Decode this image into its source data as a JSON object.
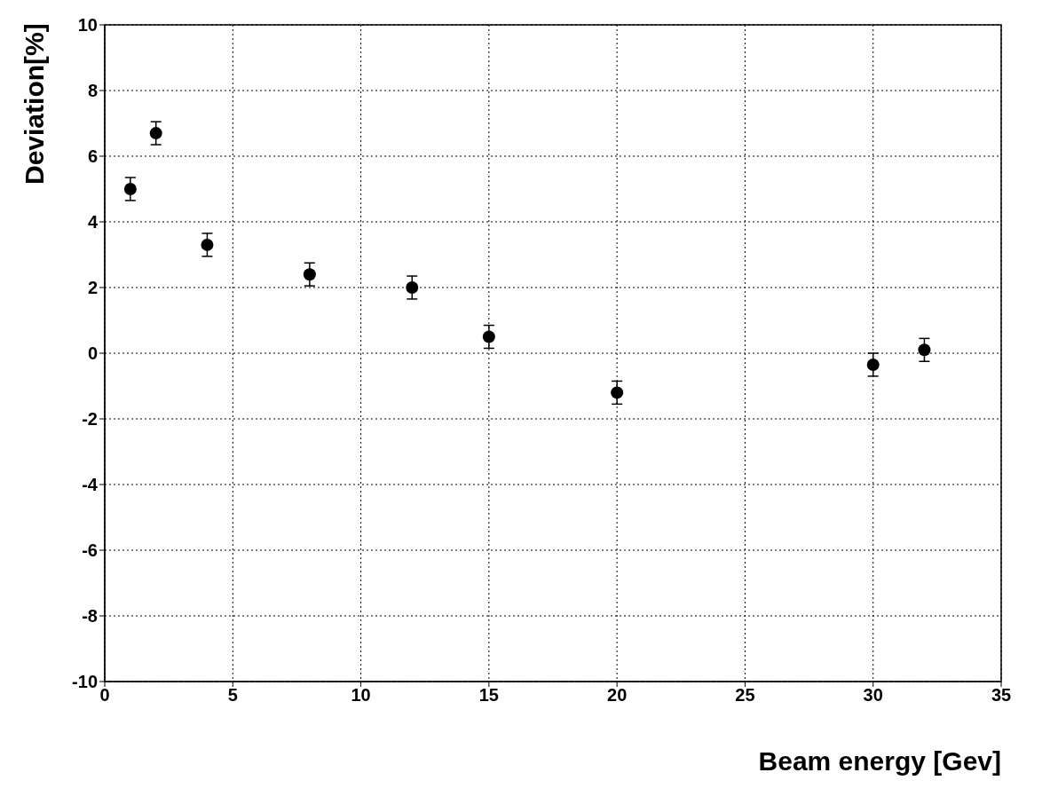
{
  "chart_data": {
    "type": "scatter",
    "xlabel": "Beam energy [Gev]",
    "ylabel": "Deviation[%]",
    "x": [
      1,
      2,
      4,
      8,
      12,
      15,
      20,
      30,
      32
    ],
    "series": [
      {
        "color": "#000000",
        "values": [
          5.0,
          6.7,
          3.3,
          2.4,
          2.0,
          0.5,
          -1.2,
          -0.35,
          0.1
        ],
        "errors": [
          0.35,
          0.35,
          0.35,
          0.35,
          0.35,
          0.35,
          0.35,
          0.35,
          0.35
        ]
      }
    ],
    "xlim": [
      0,
      35
    ],
    "xticks": [
      0,
      5,
      10,
      15,
      20,
      25,
      30,
      35
    ],
    "ylim": [
      -10,
      10
    ],
    "yticks": [
      -10,
      -8,
      -6,
      -4,
      -2,
      0,
      2,
      4,
      6,
      8,
      10
    ],
    "grid": true,
    "marker": "circle"
  }
}
